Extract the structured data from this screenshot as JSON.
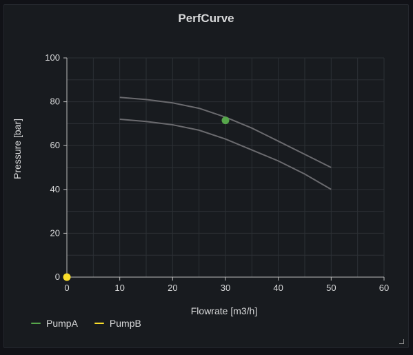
{
  "panel": {
    "title": "PerfCurve"
  },
  "colors": {
    "background": "#111217",
    "panel_bg": "#181b1f",
    "grid": "#2c3035",
    "axis": "#bdbdbd",
    "text": "#d8d9da",
    "curve": "#6b6b6f",
    "pumpA": "#56a64b",
    "pumpB": "#fade2a"
  },
  "legend": [
    {
      "name": "PumpA",
      "color": "#56a64b"
    },
    {
      "name": "PumpB",
      "color": "#fade2a"
    }
  ],
  "chart_data": {
    "type": "scatter",
    "xlabel": "Flowrate [m3/h]",
    "ylabel": "Pressure [bar]",
    "xlim": [
      0,
      60
    ],
    "ylim": [
      0,
      100
    ],
    "xticks": [
      0,
      10,
      20,
      30,
      40,
      50,
      60
    ],
    "yticks": [
      0,
      20,
      40,
      60,
      80,
      100
    ],
    "grid": true,
    "legend_position": "bottom-left",
    "curves": [
      {
        "x": [
          10,
          15,
          20,
          25,
          30,
          35,
          40,
          45,
          50
        ],
        "y": [
          82,
          81,
          79.5,
          77,
          73,
          68,
          62,
          56,
          50
        ]
      },
      {
        "x": [
          10,
          15,
          20,
          25,
          30,
          35,
          40,
          45,
          50
        ],
        "y": [
          72,
          71,
          69.5,
          67,
          63,
          58,
          53,
          47,
          40
        ]
      }
    ],
    "series": [
      {
        "name": "PumpA",
        "color": "#56a64b",
        "points": [
          {
            "x": 30,
            "y": 71.5
          }
        ]
      },
      {
        "name": "PumpB",
        "color": "#fade2a",
        "points": [
          {
            "x": 0,
            "y": 0
          }
        ]
      }
    ]
  }
}
